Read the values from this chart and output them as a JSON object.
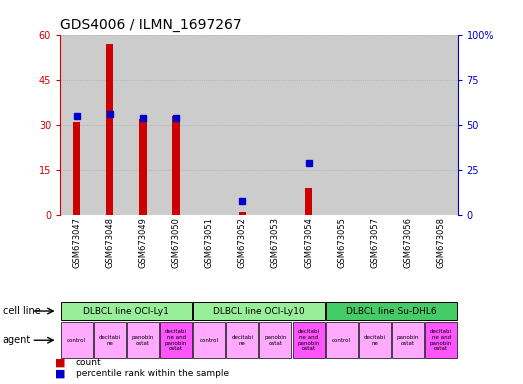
{
  "title": "GDS4006 / ILMN_1697267",
  "samples": [
    "GSM673047",
    "GSM673048",
    "GSM673049",
    "GSM673050",
    "GSM673051",
    "GSM673052",
    "GSM673053",
    "GSM673054",
    "GSM673055",
    "GSM673057",
    "GSM673056",
    "GSM673058"
  ],
  "counts": [
    31,
    57,
    32,
    33,
    0,
    1,
    0,
    9,
    0,
    0,
    0,
    0
  ],
  "percentiles": [
    55,
    56,
    54,
    54,
    0,
    8,
    0,
    29,
    0,
    0,
    0,
    0
  ],
  "ylim_left": [
    0,
    60
  ],
  "ylim_right": [
    0,
    100
  ],
  "yticks_left": [
    0,
    15,
    30,
    45,
    60
  ],
  "yticks_right": [
    0,
    25,
    50,
    75,
    100
  ],
  "cell_lines": [
    {
      "label": "DLBCL line OCI-Ly1",
      "start": 0,
      "end": 4,
      "color": "#99ee99"
    },
    {
      "label": "DLBCL line OCI-Ly10",
      "start": 4,
      "end": 8,
      "color": "#99ee99"
    },
    {
      "label": "DLBCL line Su-DHL6",
      "start": 8,
      "end": 12,
      "color": "#44cc66"
    }
  ],
  "agents": [
    "control",
    "decitabi\nne",
    "panobin\nostat",
    "decitabi\nne and\npanobin\nostat",
    "control",
    "decitabi\nne",
    "panobin\nostat",
    "decitabi\nne and\npanobin\nostat",
    "control",
    "decitabi\nne",
    "panobin\nostat",
    "decitabi\nne and\npanobin\nostat"
  ],
  "agent_colors": [
    "#ffaaff",
    "#ffaaff",
    "#ffaaff",
    "#ff55ff",
    "#ffaaff",
    "#ffaaff",
    "#ffaaff",
    "#ff55ff",
    "#ffaaff",
    "#ffaaff",
    "#ffaaff",
    "#ff55ff"
  ],
  "bar_color": "#cc0000",
  "dot_color": "#0000cc",
  "grid_color": "#aaaaaa",
  "bg_color": "#ffffff",
  "sample_bg": "#cccccc",
  "left_axis_color": "#cc0000",
  "right_axis_color": "#0000cc"
}
